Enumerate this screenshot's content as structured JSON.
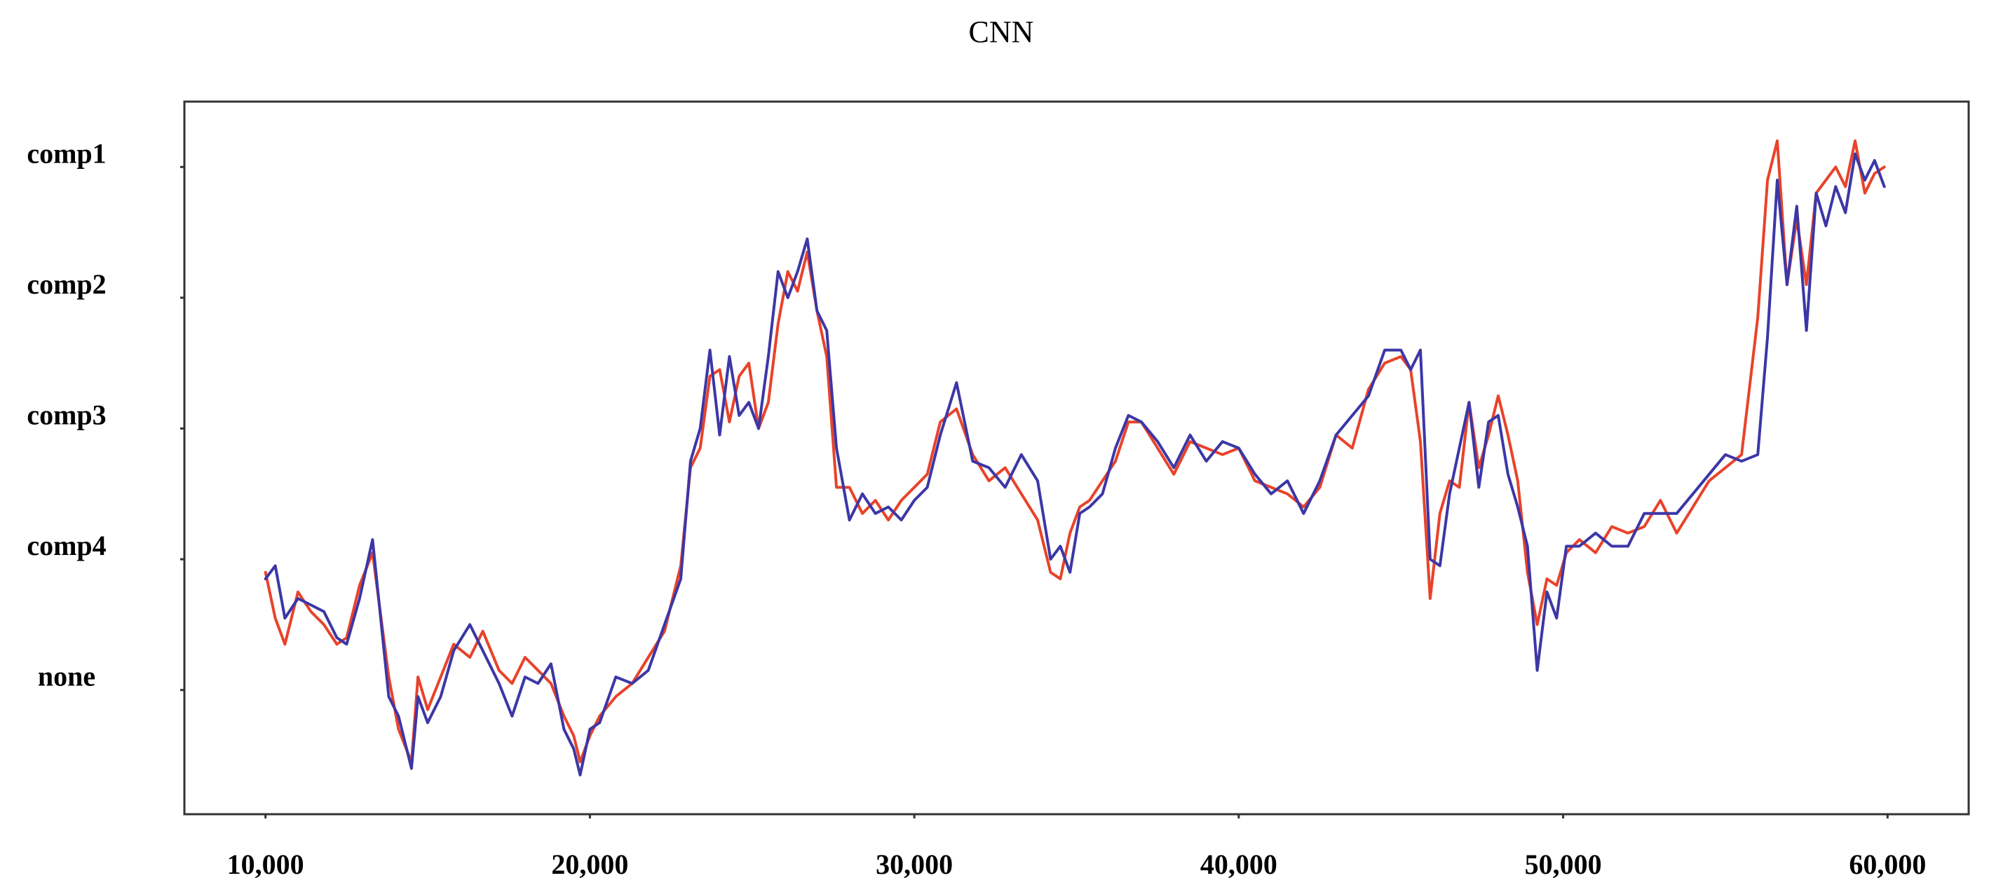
{
  "chart_data": {
    "type": "line",
    "title": "CNN",
    "xlabel": "",
    "ylabel": "",
    "xlim": [
      7500,
      62500
    ],
    "ylim": [
      -0.95,
      4.5
    ],
    "x_ticks": [
      10000,
      20000,
      30000,
      40000,
      50000,
      60000
    ],
    "x_tick_labels": [
      "10,000",
      "20,000",
      "30,000",
      "40,000",
      "50,000",
      "60,000"
    ],
    "y_ticks": [
      4,
      3,
      2,
      1,
      0
    ],
    "y_tick_labels": [
      "comp1",
      "comp2",
      "comp3",
      "comp4",
      "none"
    ],
    "grid": false,
    "legend": "none",
    "series": [
      {
        "color": "#e8432a",
        "x": [
          10000,
          10300,
          10600,
          11000,
          11400,
          11800,
          12200,
          12500,
          12900,
          13300,
          13800,
          14100,
          14500,
          14700,
          15000,
          15400,
          15800,
          16300,
          16700,
          17200,
          17600,
          18000,
          18400,
          18800,
          19200,
          19500,
          19700,
          20000,
          20300,
          20800,
          21300,
          21800,
          22300,
          22800,
          23100,
          23400,
          23700,
          24000,
          24300,
          24600,
          24900,
          25200,
          25500,
          25800,
          26100,
          26400,
          26700,
          27000,
          27300,
          27600,
          28000,
          28400,
          28800,
          29200,
          29600,
          30000,
          30400,
          30800,
          31300,
          31800,
          32300,
          32800,
          33300,
          33800,
          34200,
          34500,
          34800,
          35100,
          35400,
          35800,
          36200,
          36600,
          37000,
          37500,
          38000,
          38500,
          39000,
          39500,
          40000,
          40500,
          41000,
          41500,
          42000,
          42500,
          43000,
          43500,
          44000,
          44500,
          45000,
          45300,
          45600,
          45900,
          46200,
          46500,
          46800,
          47100,
          47400,
          47700,
          48000,
          48300,
          48600,
          48900,
          49200,
          49500,
          49800,
          50100,
          50500,
          51000,
          51500,
          52000,
          52500,
          53000,
          53500,
          54000,
          54500,
          55000,
          55500,
          56000,
          56300,
          56600,
          56900,
          57200,
          57500,
          57800,
          58100,
          58400,
          58700,
          59000,
          59300,
          59600,
          59900
        ],
        "y": [
          0.9,
          0.55,
          0.35,
          0.75,
          0.6,
          0.5,
          0.35,
          0.4,
          0.8,
          1.05,
          0.1,
          -0.3,
          -0.55,
          0.1,
          -0.15,
          0.1,
          0.35,
          0.25,
          0.45,
          0.15,
          0.05,
          0.25,
          0.15,
          0.05,
          -0.2,
          -0.35,
          -0.55,
          -0.35,
          -0.2,
          -0.05,
          0.05,
          0.25,
          0.45,
          0.95,
          1.7,
          1.85,
          2.4,
          2.45,
          2.05,
          2.4,
          2.5,
          2.0,
          2.2,
          2.8,
          3.2,
          3.05,
          3.35,
          2.9,
          2.55,
          1.55,
          1.55,
          1.35,
          1.45,
          1.3,
          1.45,
          1.55,
          1.65,
          2.05,
          2.15,
          1.8,
          1.6,
          1.7,
          1.5,
          1.3,
          0.9,
          0.85,
          1.2,
          1.4,
          1.45,
          1.6,
          1.75,
          2.05,
          2.05,
          1.85,
          1.65,
          1.9,
          1.85,
          1.8,
          1.85,
          1.6,
          1.55,
          1.5,
          1.4,
          1.55,
          1.95,
          1.85,
          2.3,
          2.5,
          2.55,
          2.45,
          1.9,
          0.7,
          1.35,
          1.6,
          1.55,
          2.2,
          1.7,
          1.95,
          2.25,
          1.95,
          1.6,
          0.9,
          0.5,
          0.85,
          0.8,
          1.05,
          1.15,
          1.05,
          1.25,
          1.2,
          1.25,
          1.45,
          1.2,
          1.4,
          1.6,
          1.7,
          1.8,
          2.85,
          3.9,
          4.2,
          3.1,
          3.6,
          3.1,
          3.8,
          3.9,
          4.0,
          3.85,
          4.2,
          3.8,
          3.95,
          4.0
        ]
      },
      {
        "color": "#3c37a6",
        "x": [
          10000,
          10300,
          10600,
          11000,
          11400,
          11800,
          12200,
          12500,
          12900,
          13300,
          13800,
          14100,
          14500,
          14700,
          15000,
          15400,
          15800,
          16300,
          16700,
          17200,
          17600,
          18000,
          18400,
          18800,
          19200,
          19500,
          19700,
          20000,
          20300,
          20800,
          21300,
          21800,
          22300,
          22800,
          23100,
          23400,
          23700,
          24000,
          24300,
          24600,
          24900,
          25200,
          25500,
          25800,
          26100,
          26400,
          26700,
          27000,
          27300,
          27600,
          28000,
          28400,
          28800,
          29200,
          29600,
          30000,
          30400,
          30800,
          31300,
          31800,
          32300,
          32800,
          33300,
          33800,
          34200,
          34500,
          34800,
          35100,
          35400,
          35800,
          36200,
          36600,
          37000,
          37500,
          38000,
          38500,
          39000,
          39500,
          40000,
          40500,
          41000,
          41500,
          42000,
          42500,
          43000,
          43500,
          44000,
          44500,
          45000,
          45300,
          45600,
          45900,
          46200,
          46500,
          46800,
          47100,
          47400,
          47700,
          48000,
          48300,
          48600,
          48900,
          49200,
          49500,
          49800,
          50100,
          50500,
          51000,
          51500,
          52000,
          52500,
          53000,
          53500,
          54000,
          54500,
          55000,
          55500,
          56000,
          56300,
          56600,
          56900,
          57200,
          57500,
          57800,
          58100,
          58400,
          58700,
          59000,
          59300,
          59600,
          59900
        ],
        "y": [
          0.85,
          0.95,
          0.55,
          0.7,
          0.65,
          0.6,
          0.4,
          0.35,
          0.7,
          1.15,
          -0.05,
          -0.2,
          -0.6,
          -0.05,
          -0.25,
          -0.05,
          0.3,
          0.5,
          0.3,
          0.05,
          -0.2,
          0.1,
          0.05,
          0.2,
          -0.3,
          -0.45,
          -0.65,
          -0.3,
          -0.25,
          0.1,
          0.05,
          0.15,
          0.5,
          0.85,
          1.75,
          2.0,
          2.6,
          1.95,
          2.55,
          2.1,
          2.2,
          2.0,
          2.55,
          3.2,
          3.0,
          3.2,
          3.45,
          2.9,
          2.75,
          1.85,
          1.3,
          1.5,
          1.35,
          1.4,
          1.3,
          1.45,
          1.55,
          1.95,
          2.35,
          1.75,
          1.7,
          1.55,
          1.8,
          1.6,
          1.0,
          1.1,
          0.9,
          1.35,
          1.4,
          1.5,
          1.85,
          2.1,
          2.05,
          1.9,
          1.7,
          1.95,
          1.75,
          1.9,
          1.85,
          1.65,
          1.5,
          1.6,
          1.35,
          1.6,
          1.95,
          2.1,
          2.25,
          2.6,
          2.6,
          2.45,
          2.6,
          1.0,
          0.95,
          1.5,
          1.85,
          2.2,
          1.55,
          2.05,
          2.1,
          1.65,
          1.4,
          1.1,
          0.15,
          0.75,
          0.55,
          1.1,
          1.1,
          1.2,
          1.1,
          1.1,
          1.35,
          1.35,
          1.35,
          1.5,
          1.65,
          1.8,
          1.75,
          1.8,
          2.7,
          3.9,
          3.1,
          3.7,
          2.75,
          3.8,
          3.55,
          3.85,
          3.65,
          4.1,
          3.9,
          4.05,
          3.85
        ]
      }
    ]
  }
}
